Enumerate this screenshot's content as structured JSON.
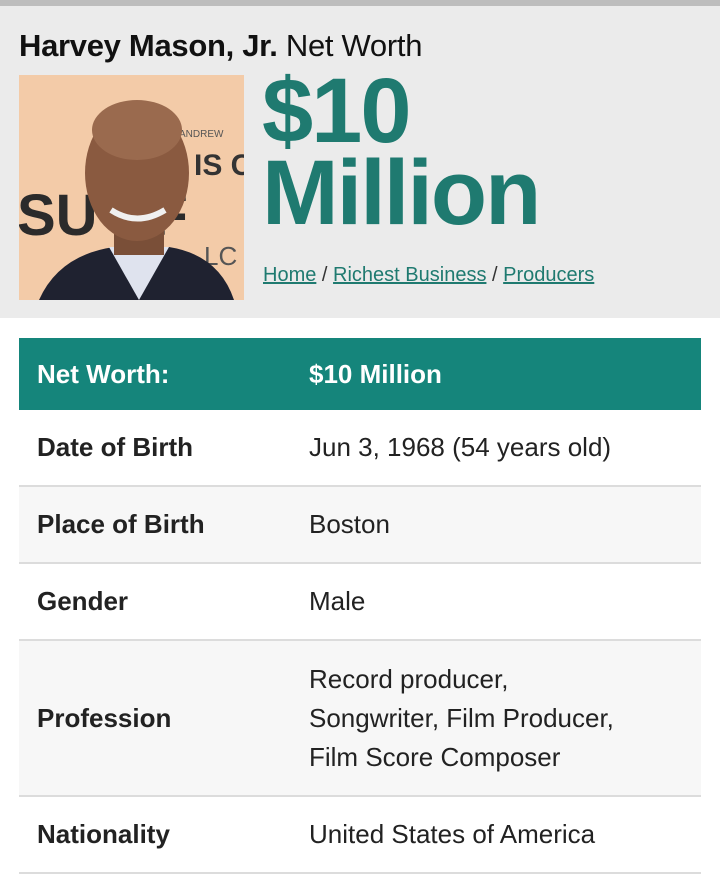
{
  "header": {
    "name": "Harvey Mason, Jr.",
    "title_suffix": "Net Worth",
    "net_worth_amount": "$10",
    "net_worth_unit": "Million",
    "photo_alt": "Harvey Mason, Jr.",
    "photo_backdrop_text": [
      "ANDREW",
      "IS C",
      "SU  EF",
      "LC"
    ],
    "breadcrumb": [
      "Home",
      "Richest Business",
      "Producers"
    ],
    "breadcrumb_separator": "/"
  },
  "table": {
    "header": {
      "label": "Net Worth:",
      "value": "$10 Million"
    },
    "rows": [
      {
        "label": "Date of Birth",
        "value": "Jun 3, 1968 (54 years old)"
      },
      {
        "label": "Place of Birth",
        "value": "Boston"
      },
      {
        "label": "Gender",
        "value": "Male"
      },
      {
        "label": "Profession",
        "value_lines": [
          "Record producer,",
          "Songwriter, Film Producer,",
          "Film Score Composer"
        ]
      },
      {
        "label": "Nationality",
        "value": "United States of America"
      }
    ]
  },
  "colors": {
    "accent": "#1f7a70",
    "table_header": "#15857b",
    "header_bg": "#ebebeb"
  }
}
